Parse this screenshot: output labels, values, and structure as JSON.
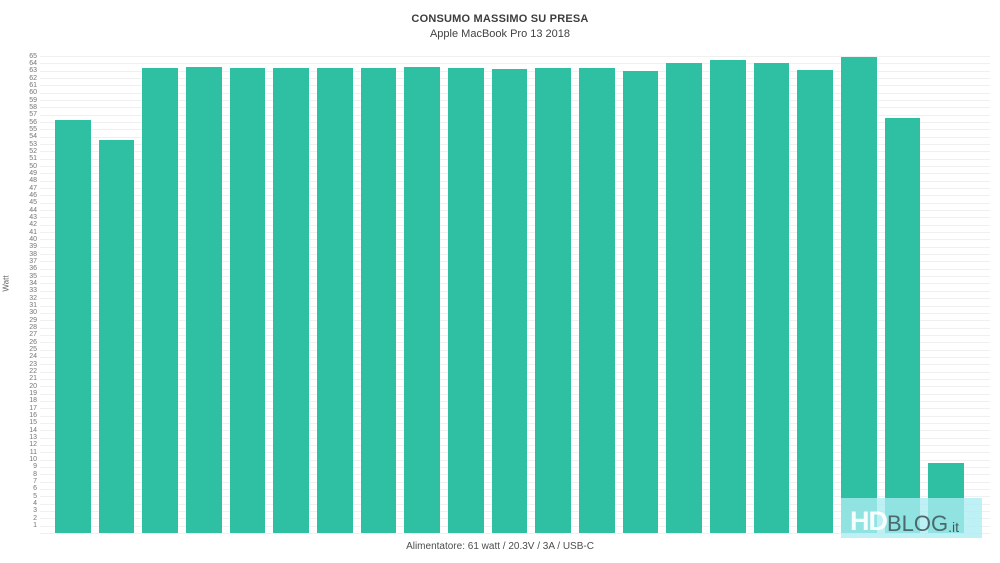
{
  "page": {
    "background": "#ffffff"
  },
  "chart_data": {
    "type": "bar",
    "title": "CONSUMO MASSIMO SU PRESA",
    "subtitle": "Apple MacBook Pro 13 2018",
    "ylabel": "Watt",
    "xlabel": "",
    "caption": "Alimentatore: 61 watt / 20.3V / 3A / USB-C",
    "values": [
      56.3,
      53.6,
      63.3,
      63.5,
      63.4,
      63.4,
      63.3,
      63.4,
      63.5,
      63.3,
      63.2,
      63.3,
      63.3,
      63.0,
      64.0,
      64.5,
      64.1,
      63.1,
      64.8,
      56.5,
      9.5
    ],
    "ylim": [
      0,
      65
    ],
    "y_ticks": {
      "from": 1,
      "to": 65,
      "step": 1
    },
    "grid": true,
    "legend": "none",
    "bar_color": "#2fbfa2",
    "grid_color": "#f0f0f0",
    "tick_color": "#757575"
  },
  "watermark": {
    "hd": "HD",
    "blog": "BLOG",
    "it": ".it",
    "background": "#ace df2",
    "hd_color": "#ffffff",
    "blog_color": "#4d686c"
  }
}
